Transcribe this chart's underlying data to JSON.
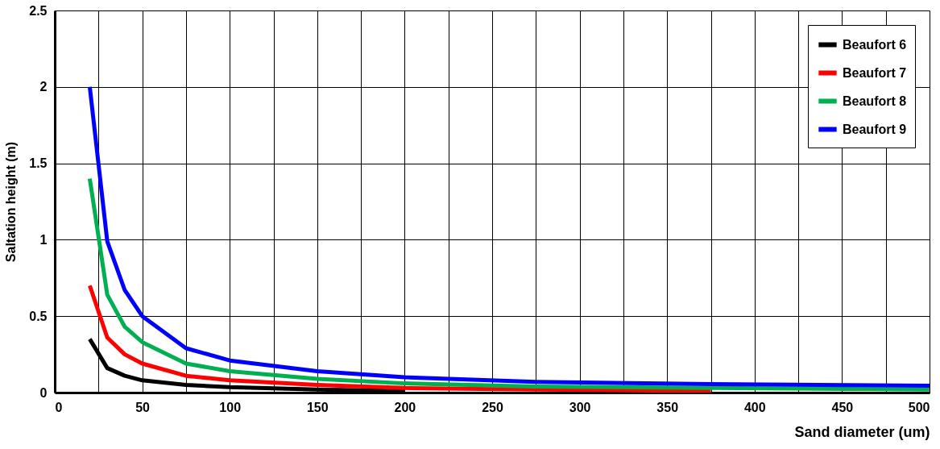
{
  "chart_data": {
    "type": "line",
    "xlabel": "Sand diameter (um)",
    "ylabel": "Saltation height (m)",
    "xlim": [
      0,
      500
    ],
    "ylim": [
      0,
      2.5
    ],
    "xticks": [
      0,
      {
        "value": 25,
        "label": null
      },
      50,
      {
        "value": 75,
        "label": null
      },
      100,
      {
        "value": 125,
        "label": null
      },
      150,
      {
        "value": 175,
        "label": null
      },
      200,
      {
        "value": 225,
        "label": null
      },
      250,
      {
        "value": 275,
        "label": null
      },
      300,
      {
        "value": 325,
        "label": null
      },
      350,
      {
        "value": 375,
        "label": null
      },
      400,
      {
        "value": 425,
        "label": null
      },
      450,
      {
        "value": 475,
        "label": null
      },
      500
    ],
    "yticks": [
      0,
      0.5,
      1,
      1.5,
      2,
      2.5
    ],
    "grid": true,
    "legend": "top right",
    "marker": "none",
    "line_style": "solid",
    "series": [
      {
        "name": "Beaufort 6",
        "color": "#000000",
        "x": [
          20,
          30,
          40,
          50,
          75,
          100,
          150,
          200
        ],
        "values": [
          0.35,
          0.16,
          0.11,
          0.08,
          0.05,
          0.035,
          0.02,
          0.01
        ]
      },
      {
        "name": "Beaufort 7",
        "color": "#ff0000",
        "x": [
          20,
          30,
          40,
          50,
          75,
          100,
          150,
          200,
          275,
          375
        ],
        "values": [
          0.7,
          0.36,
          0.25,
          0.19,
          0.11,
          0.08,
          0.05,
          0.03,
          0.02,
          0.01
        ]
      },
      {
        "name": "Beaufort 8",
        "color": "#00b050",
        "x": [
          20,
          30,
          40,
          50,
          75,
          100,
          150,
          200,
          275,
          375,
          500
        ],
        "values": [
          1.4,
          0.64,
          0.43,
          0.33,
          0.19,
          0.14,
          0.09,
          0.06,
          0.04,
          0.03,
          0.02
        ]
      },
      {
        "name": "Beaufort 9",
        "color": "#0000ff",
        "x": [
          20,
          30,
          40,
          50,
          75,
          100,
          150,
          200,
          275,
          375,
          500
        ],
        "values": [
          2.0,
          0.99,
          0.67,
          0.5,
          0.29,
          0.21,
          0.14,
          0.1,
          0.07,
          0.055,
          0.045
        ]
      }
    ]
  }
}
